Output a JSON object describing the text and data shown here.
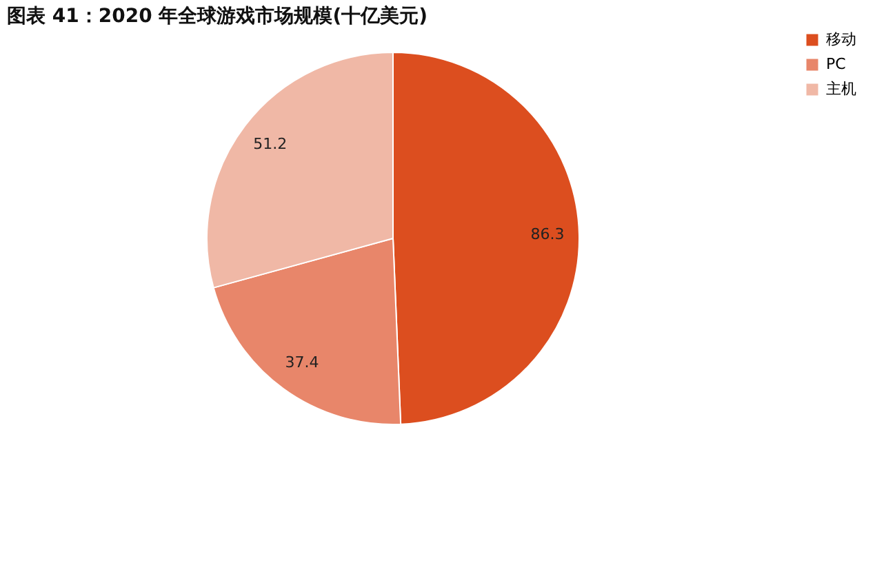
{
  "chart_data": {
    "type": "pie",
    "title": "图表 41：2020 年全球游戏市场规模(十亿美元)",
    "categories": [
      "移动",
      "PC",
      "主机"
    ],
    "values": [
      86.3,
      37.4,
      51.2
    ],
    "colors": [
      "#dc4e1f",
      "#e8866a",
      "#f0b8a6"
    ],
    "data_labels": true,
    "legend": "right"
  }
}
